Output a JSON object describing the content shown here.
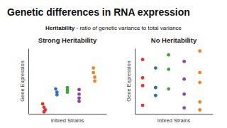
{
  "slide": {
    "title": "Genetic differences in RNA expression",
    "term": "Heritability",
    "definition": " - ratio of genetic variance to total variance"
  },
  "chart_data": [
    {
      "type": "scatter",
      "title": "Strong Heritability",
      "x_label": "Inbred Strains",
      "y_label": "Gene Expression",
      "xlim": [
        0,
        6
      ],
      "ylim": [
        0,
        10
      ],
      "xticks": [],
      "yticks": [],
      "tick_labels": false,
      "marker": "circle",
      "series": [
        {
          "color": "#e8302a",
          "x": [
            1.1,
            1.2,
            1.3,
            1.2
          ],
          "values": [
            1.5,
            1.0,
            0.6,
            0.3
          ]
        },
        {
          "color": "#2c6fbb",
          "x": [
            2.1,
            2.2,
            2.2
          ],
          "values": [
            3.8,
            3.3,
            2.9
          ]
        },
        {
          "color": "#3aaa35",
          "x": [
            3.0,
            3.0,
            3.0
          ],
          "values": [
            4.0,
            3.6,
            3.3
          ]
        },
        {
          "color": "#8e44ad",
          "x": [
            3.9,
            3.9,
            3.9,
            3.9
          ],
          "values": [
            3.7,
            3.0,
            2.4,
            1.9
          ]
        },
        {
          "color": "#f0821e",
          "x": [
            5.0,
            5.0,
            5.1,
            5.1
          ],
          "values": [
            7.0,
            6.3,
            5.6,
            5.0
          ]
        }
      ]
    },
    {
      "type": "scatter",
      "title": "No Heritability",
      "x_label": "Inbred Strains",
      "y_label": "Gene Expression",
      "xlim": [
        0,
        6
      ],
      "ylim": [
        0,
        10
      ],
      "xticks": [],
      "yticks": [],
      "tick_labels": false,
      "marker": "circle",
      "series": [
        {
          "color": "#e8302a",
          "x": [
            0.6,
            0.6,
            0.6,
            0.6
          ],
          "values": [
            8.3,
            5.5,
            4.3,
            1.3
          ]
        },
        {
          "color": "#2c6fbb",
          "x": [
            1.6,
            1.6,
            1.6
          ],
          "values": [
            7.0,
            4.0,
            2.8
          ]
        },
        {
          "color": "#3aaa35",
          "x": [
            2.6,
            2.6,
            2.6
          ],
          "values": [
            9.0,
            6.8,
            3.8
          ]
        },
        {
          "color": "#8e44ad",
          "x": [
            3.8,
            3.8,
            3.8,
            3.8
          ],
          "values": [
            8.0,
            5.3,
            3.0,
            0.9
          ]
        },
        {
          "color": "#f0821e",
          "x": [
            5.0,
            5.0,
            5.0,
            5.0,
            5.0
          ],
          "values": [
            9.6,
            6.3,
            4.8,
            1.8,
            0.6
          ]
        }
      ]
    }
  ]
}
